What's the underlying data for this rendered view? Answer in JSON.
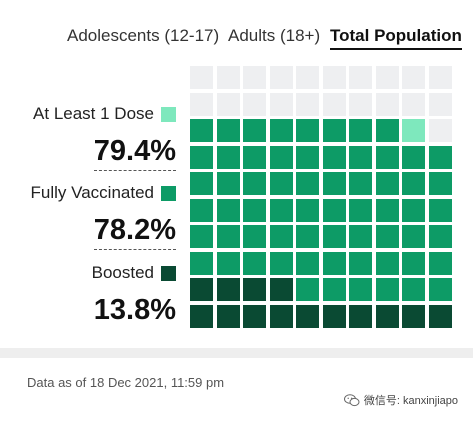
{
  "tabs": [
    {
      "label": "Adolescents (12-17)",
      "active": false
    },
    {
      "label": "Adults (18+)",
      "active": false
    },
    {
      "label": "Total Population",
      "active": true
    }
  ],
  "stats": [
    {
      "label": "At Least 1 Dose",
      "value": "79.4%",
      "color": "#7ee8bd"
    },
    {
      "label": "Fully Vaccinated",
      "value": "78.2%",
      "color": "#0d9b66"
    },
    {
      "label": "Boosted",
      "value": "13.8%",
      "color": "#0a4a33"
    }
  ],
  "waffle": {
    "rows": 10,
    "cols": 10,
    "cells_boosted": 14,
    "cells_fully_vaccinated": 78,
    "cells_at_least_1_dose": 79,
    "colors": {
      "empty": "#eeeff1",
      "at_least_1_dose": "#7ee8bd",
      "fully_vaccinated": "#0d9b66",
      "boosted": "#0a4a33"
    }
  },
  "footer": {
    "data_as_of": "Data as of 18 Dec 2021, 11:59 pm"
  },
  "watermark": {
    "text": "微信号: kanxinjiapo",
    "icon": "wechat-icon"
  }
}
